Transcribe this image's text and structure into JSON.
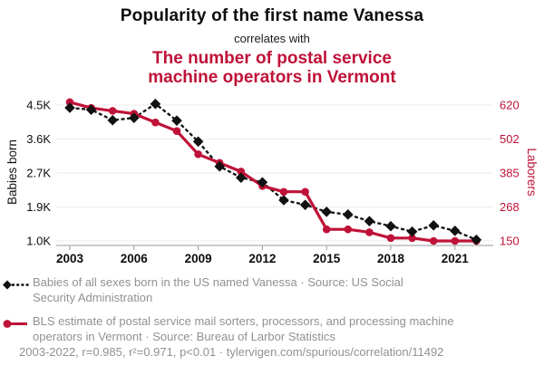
{
  "header": {
    "title": "Popularity of the first name Vanessa",
    "connector": "correlates with",
    "subtitle": "The number of postal service machine operators in Vermont"
  },
  "chart_data": {
    "type": "line",
    "x": [
      2003,
      2004,
      2005,
      2006,
      2007,
      2008,
      2009,
      2010,
      2011,
      2012,
      2013,
      2014,
      2015,
      2016,
      2017,
      2018,
      2019,
      2020,
      2021,
      2022
    ],
    "x_ticks": [
      2003,
      2006,
      2009,
      2012,
      2015,
      2018,
      2021
    ],
    "left_axis": {
      "label": "Babies born",
      "ticks": [
        "4.5K",
        "3.6K",
        "2.7K",
        "1.9K",
        "1.0K"
      ],
      "tick_values": [
        4500,
        3625,
        2750,
        1875,
        1000
      ],
      "range": [
        1000,
        4500
      ]
    },
    "right_axis": {
      "label": "Laborers",
      "ticks": [
        "620",
        "502",
        "385",
        "268",
        "150"
      ],
      "tick_values": [
        620,
        502.5,
        385,
        267.5,
        150
      ],
      "range": [
        150,
        620
      ]
    },
    "grid": true,
    "legend_position": "bottom",
    "series": [
      {
        "name": "Babies of all sexes born in the US named Vanessa",
        "axis": "left",
        "color": "#111111",
        "line_style": "dashed",
        "marker": "diamond",
        "values": [
          4430,
          4380,
          4110,
          4170,
          4530,
          4100,
          3560,
          2920,
          2630,
          2510,
          2050,
          1930,
          1750,
          1680,
          1510,
          1380,
          1240,
          1400,
          1260,
          1030
        ]
      },
      {
        "name": "BLS estimate of postal service mail sorters, processors, and processing machine operators in Vermont",
        "axis": "right",
        "color": "#bf1238",
        "line_style": "solid",
        "marker": "circle",
        "values": [
          630,
          610,
          600,
          590,
          560,
          530,
          450,
          420,
          390,
          340,
          320,
          320,
          190,
          190,
          180,
          160,
          160,
          150,
          150,
          150
        ]
      }
    ]
  },
  "legend": {
    "items": [
      {
        "marker": "black-diamond-dashed",
        "label": "Babies of all sexes born in the US named Vanessa · Source: US Social\nSecurity Administration"
      },
      {
        "marker": "red-circle-solid",
        "label": "BLS estimate of postal service mail sorters, processors, and processing machine\noperators in Vermont · Source: Bureau of Larbor Statistics"
      }
    ]
  },
  "footer": {
    "text": "2003-2022, r=0.985, r²=0.971, p<0.01 · tylervigen.com/spurious/correlation/11492"
  },
  "colors": {
    "accent_red": "#bf1238",
    "series_black": "#111111",
    "text_gray": "#919191",
    "grid": "#ebebeb",
    "axis": "#9a9a9a"
  }
}
